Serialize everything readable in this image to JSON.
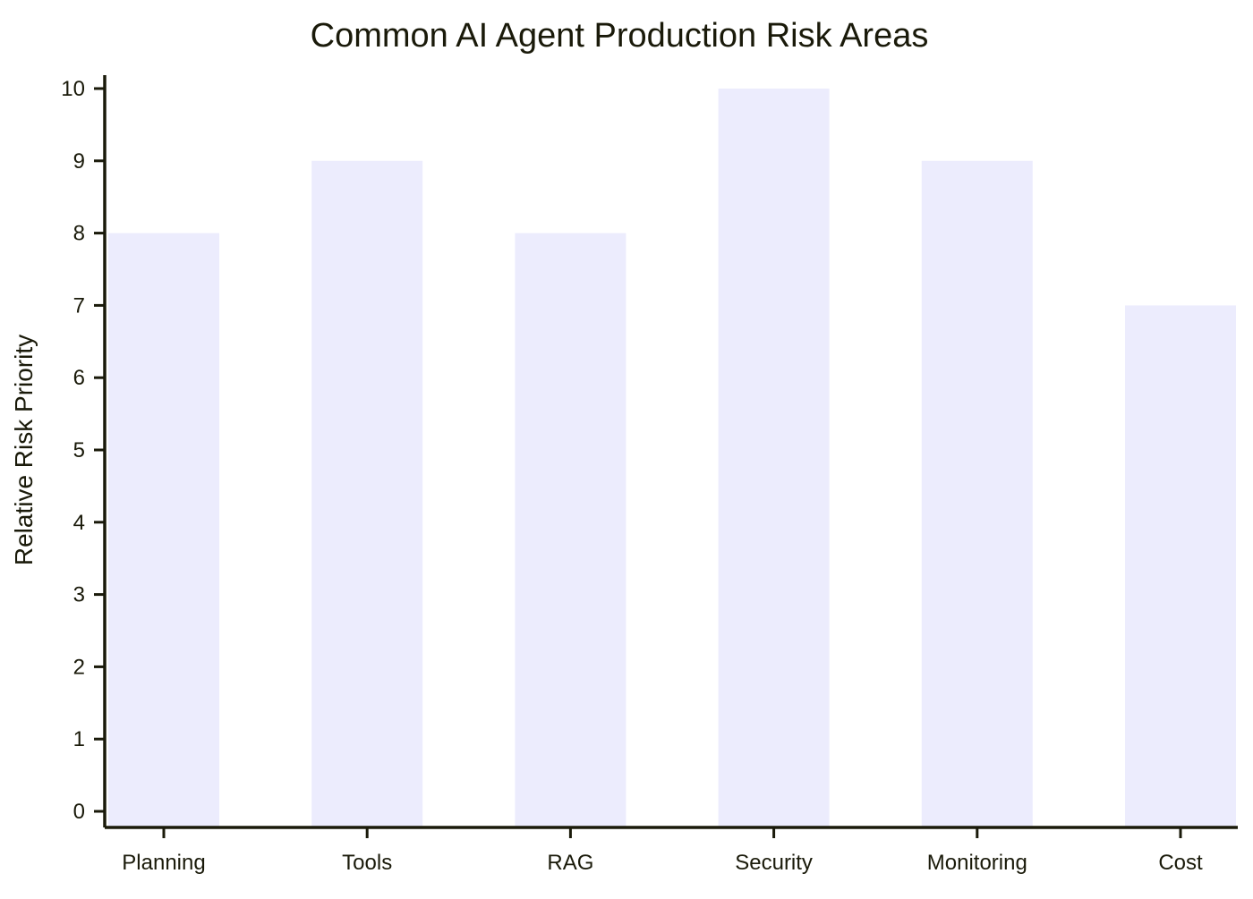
{
  "chart_data": {
    "type": "bar",
    "title": "Common AI Agent Production Risk Areas",
    "xlabel": "",
    "ylabel": "Relative Risk Priority",
    "categories": [
      "Planning",
      "Tools",
      "RAG",
      "Security",
      "Monitoring",
      "Cost"
    ],
    "values": [
      8,
      9,
      8,
      10,
      9,
      7
    ],
    "ylim": [
      0,
      10
    ],
    "yticks": [
      "0",
      "1",
      "2",
      "3",
      "4",
      "5",
      "6",
      "7",
      "8",
      "9",
      "10"
    ],
    "grid": false,
    "legend": "none",
    "bar_color": "#ececfd",
    "axis_color": "#1a1a0a"
  }
}
